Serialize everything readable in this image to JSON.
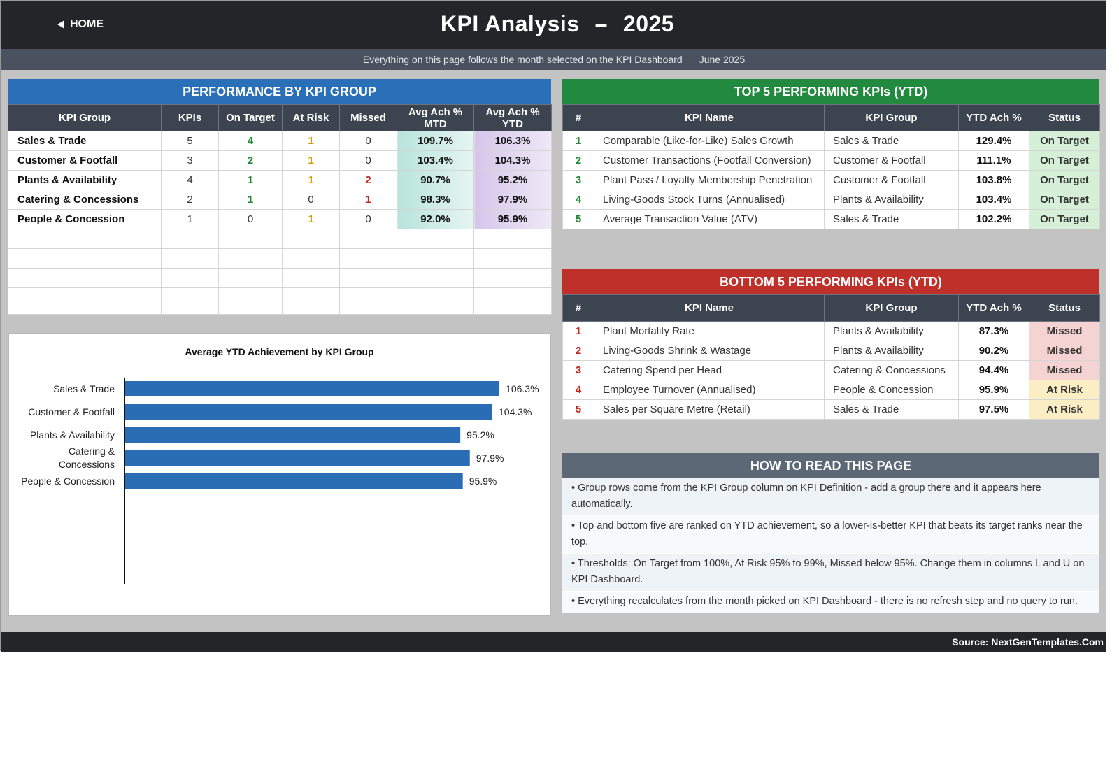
{
  "header": {
    "home_label": "HOME",
    "title": "KPI Analysis",
    "title_sep": "–",
    "year": "2025",
    "subtitle": "Everything on this page follows the month selected on the KPI Dashboard",
    "month": "June 2025"
  },
  "performance": {
    "title": "PERFORMANCE BY KPI GROUP",
    "columns": [
      "KPI Group",
      "KPIs",
      "On Target",
      "At Risk",
      "Missed",
      "Avg Ach % MTD",
      "Avg Ach % YTD"
    ],
    "rows": [
      {
        "group": "Sales & Trade",
        "kpis": "5",
        "on_target": "4",
        "at_risk": "1",
        "missed": "0",
        "mtd": "109.7%",
        "ytd": "106.3%"
      },
      {
        "group": "Customer & Footfall",
        "kpis": "3",
        "on_target": "2",
        "at_risk": "1",
        "missed": "0",
        "mtd": "103.4%",
        "ytd": "104.3%"
      },
      {
        "group": "Plants & Availability",
        "kpis": "4",
        "on_target": "1",
        "at_risk": "1",
        "missed": "2",
        "mtd": "90.7%",
        "ytd": "95.2%"
      },
      {
        "group": "Catering & Concessions",
        "kpis": "2",
        "on_target": "1",
        "at_risk": "0",
        "missed": "1",
        "mtd": "98.3%",
        "ytd": "97.9%"
      },
      {
        "group": "People & Concession",
        "kpis": "1",
        "on_target": "0",
        "at_risk": "1",
        "missed": "0",
        "mtd": "92.0%",
        "ytd": "95.9%"
      }
    ]
  },
  "top5": {
    "title": "TOP 5 PERFORMING KPIs  (YTD)",
    "columns": [
      "#",
      "KPI Name",
      "KPI Group",
      "YTD Ach %",
      "Status"
    ],
    "rows": [
      {
        "rank": "1",
        "name": "Comparable (Like-for-Like) Sales Growth",
        "group": "Sales & Trade",
        "ach": "129.4%",
        "status": "On Target"
      },
      {
        "rank": "2",
        "name": "Customer Transactions (Footfall Conversion)",
        "group": "Customer & Footfall",
        "ach": "111.1%",
        "status": "On Target"
      },
      {
        "rank": "3",
        "name": "Plant Pass / Loyalty Membership Penetration",
        "group": "Customer & Footfall",
        "ach": "103.8%",
        "status": "On Target"
      },
      {
        "rank": "4",
        "name": "Living-Goods Stock Turns (Annualised)",
        "group": "Plants & Availability",
        "ach": "103.4%",
        "status": "On Target"
      },
      {
        "rank": "5",
        "name": "Average Transaction Value (ATV)",
        "group": "Sales & Trade",
        "ach": "102.2%",
        "status": "On Target"
      }
    ]
  },
  "bottom5": {
    "title": "BOTTOM 5 PERFORMING KPIs  (YTD)",
    "columns": [
      "#",
      "KPI Name",
      "KPI Group",
      "YTD Ach %",
      "Status"
    ],
    "rows": [
      {
        "rank": "1",
        "name": "Plant Mortality Rate",
        "group": "Plants & Availability",
        "ach": "87.3%",
        "status": "Missed"
      },
      {
        "rank": "2",
        "name": "Living-Goods Shrink & Wastage",
        "group": "Plants & Availability",
        "ach": "90.2%",
        "status": "Missed"
      },
      {
        "rank": "3",
        "name": "Catering Spend per Head",
        "group": "Catering & Concessions",
        "ach": "94.4%",
        "status": "Missed"
      },
      {
        "rank": "4",
        "name": "Employee Turnover (Annualised)",
        "group": "People & Concession",
        "ach": "95.9%",
        "status": "At Risk"
      },
      {
        "rank": "5",
        "name": "Sales per Square Metre (Retail)",
        "group": "Sales & Trade",
        "ach": "97.5%",
        "status": "At Risk"
      }
    ]
  },
  "howto": {
    "title": "HOW TO READ THIS PAGE",
    "items": [
      "•  Group rows come from the KPI Group column on KPI Definition - add a group there and it appears here automatically.",
      "•  Top and bottom five are ranked on YTD achievement, so a lower-is-better KPI that beats its target ranks near the top.",
      "•  Thresholds: On Target from 100%, At Risk 95% to 99%, Missed below 95%. Change them in columns L and U on KPI Dashboard.",
      "•  Everything recalculates from the month picked on KPI Dashboard - there is no refresh step and no query to run."
    ]
  },
  "footer": {
    "source": "Source: NextGenTemplates.Com"
  },
  "colors": {
    "bar": "#2a6db5",
    "on_target": "#1f8a2f",
    "at_risk": "#d39a00",
    "missed": "#c1271f"
  },
  "chart_data": {
    "type": "bar",
    "orientation": "horizontal",
    "title": "Average YTD Achievement by KPI Group",
    "categories": [
      "Sales & Trade",
      "Customer & Footfall",
      "Plants & Availability",
      "Catering & Concessions",
      "People & Concession"
    ],
    "category_lines": [
      [
        "Sales & Trade"
      ],
      [
        "Customer & Footfall"
      ],
      [
        "Plants & Availability"
      ],
      [
        "Catering &",
        "Concessions"
      ],
      [
        "People & Concession"
      ]
    ],
    "values": [
      106.3,
      104.3,
      95.2,
      97.9,
      95.9
    ],
    "labels": [
      "106.3%",
      "104.3%",
      "95.2%",
      "97.9%",
      "95.9%"
    ],
    "xlim": [
      0,
      120
    ],
    "grid": false
  }
}
